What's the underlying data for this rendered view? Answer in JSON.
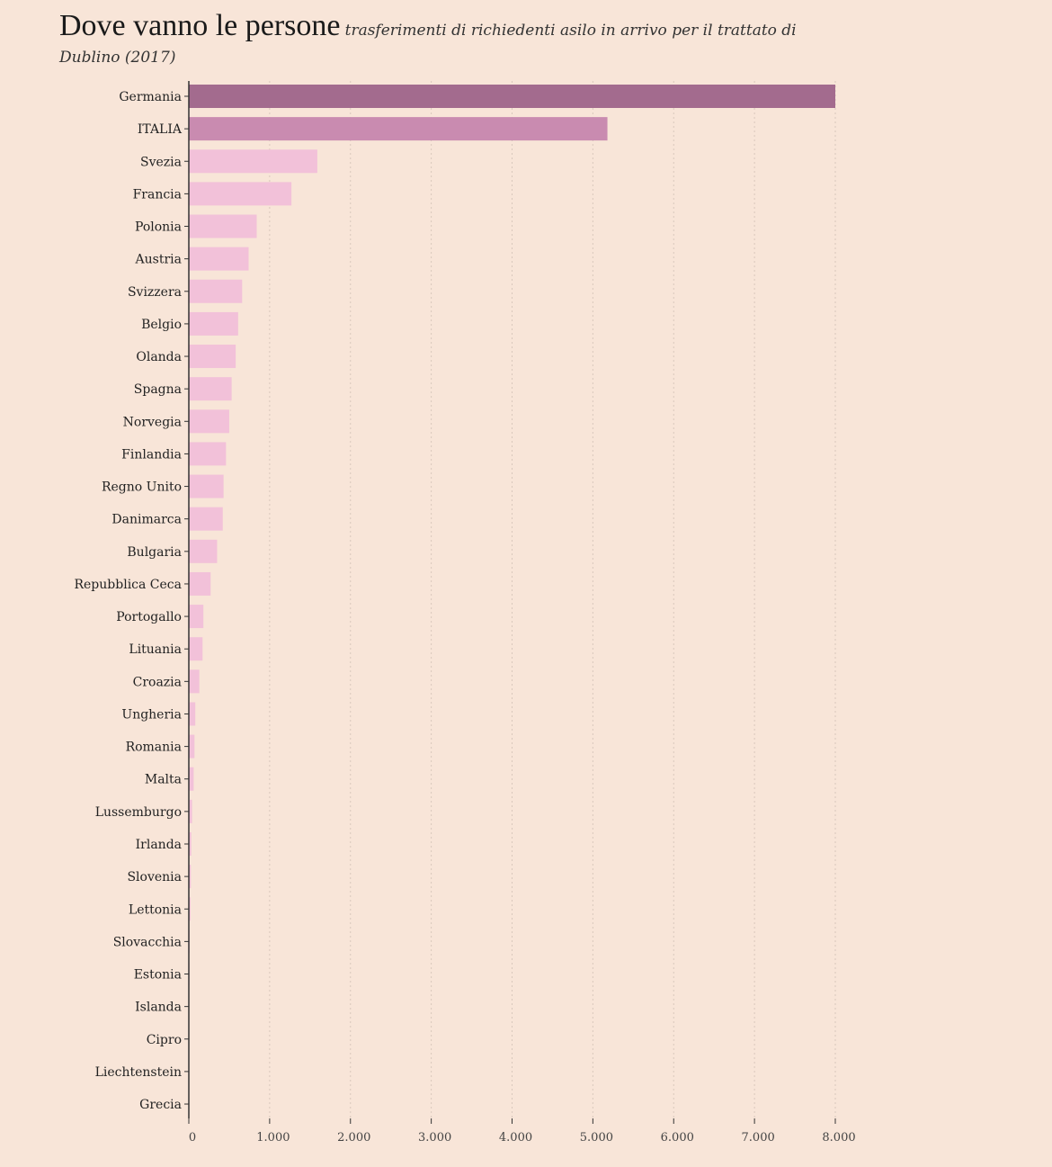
{
  "chart_data": {
    "type": "bar",
    "orientation": "horizontal",
    "title": "Dove vanno le persone",
    "subtitle": "trasferimenti di richiedenti asilo in arrivo per il trattato di Dublino (2017)",
    "categories": [
      "Germania",
      "ITALIA",
      "Svezia",
      "Francia",
      "Polonia",
      "Austria",
      "Svizzera",
      "Belgio",
      "Olanda",
      "Spagna",
      "Norvegia",
      "Finlandia",
      "Regno Unito",
      "Danimarca",
      "Bulgaria",
      "Repubblica Ceca",
      "Portogallo",
      "Lituania",
      "Croazia",
      "Ungheria",
      "Romania",
      "Malta",
      "Lussemburgo",
      "Irlanda",
      "Slovenia",
      "Lettonia",
      "Slovacchia",
      "Estonia",
      "Islanda",
      "Cipro",
      "Liechtenstein",
      "Grecia"
    ],
    "values": [
      8000,
      5180,
      1590,
      1270,
      840,
      740,
      660,
      610,
      580,
      530,
      500,
      460,
      430,
      420,
      350,
      270,
      180,
      170,
      130,
      80,
      70,
      60,
      40,
      30,
      25,
      20,
      10,
      8,
      5,
      4,
      3,
      2
    ],
    "xlim": [
      0,
      8000
    ],
    "xticks": [
      0,
      1000,
      2000,
      3000,
      4000,
      5000,
      6000,
      7000,
      8000
    ],
    "xtick_labels": [
      "0",
      "1.000",
      "2.000",
      "3.000",
      "4.000",
      "5.000",
      "6.000",
      "7.000",
      "8.000"
    ],
    "grid": "vertical-dotted",
    "colors": {
      "default": "#f2c1d9",
      "highlight": {
        "ITALIA": "#c98bb0",
        "Germania": "#a36b8e"
      },
      "background": "#f8e5d8",
      "grid": "#d9c8bc",
      "axis": "#333333"
    }
  }
}
